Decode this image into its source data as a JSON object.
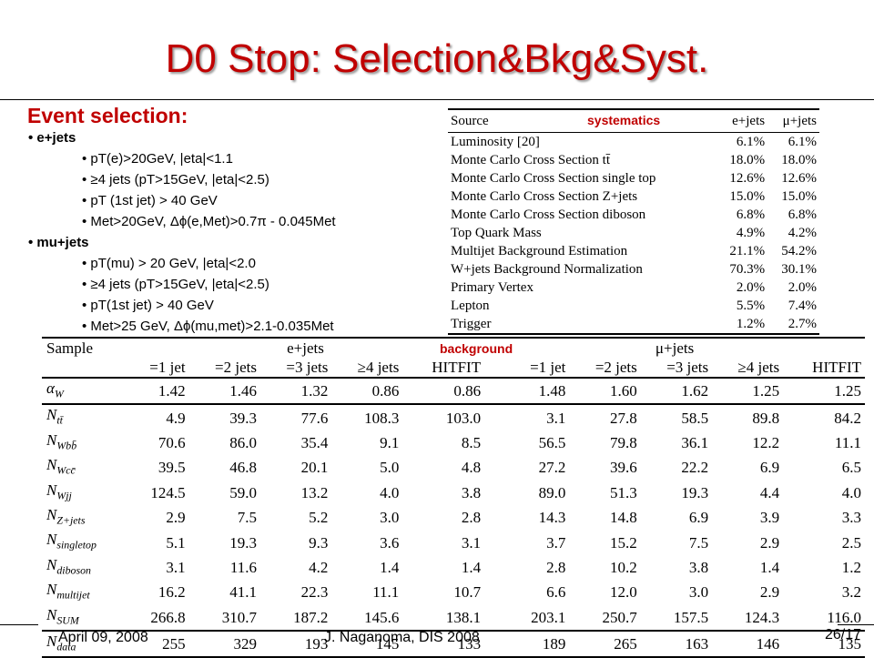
{
  "title": "D0 Stop: Selection&Bkg&Syst.",
  "selection": {
    "heading": "Event selection:",
    "channels": [
      {
        "name": "e+jets",
        "cuts": [
          "pT(e)>20GeV, |eta|<1.1",
          "≥4 jets (pT>15GeV, |eta|<2.5)",
          "pT (1st jet) > 40 GeV",
          "Met>20GeV, Δϕ(e,Met)>0.7π - 0.045Met"
        ]
      },
      {
        "name": "mu+jets",
        "cuts": [
          "pT(mu) > 20 GeV, |eta|<2.0",
          "≥4 jets (pT>15GeV, |eta|<2.5)",
          "pT(1st jet) > 40 GeV",
          "Met>25 GeV, Δϕ(mu,met)>2.1-0.035Met"
        ]
      }
    ]
  },
  "systematics": {
    "tag": "systematics",
    "header": [
      "Source",
      "e+jets",
      "μ+jets"
    ],
    "rows": [
      [
        "Luminosity [20]",
        "6.1%",
        "6.1%"
      ],
      [
        "Monte Carlo Cross Section tt̄",
        "18.0%",
        "18.0%"
      ],
      [
        "Monte Carlo Cross Section single top",
        "12.6%",
        "12.6%"
      ],
      [
        "Monte Carlo Cross Section Z+jets",
        "15.0%",
        "15.0%"
      ],
      [
        "Monte Carlo Cross Section diboson",
        "6.8%",
        "6.8%"
      ],
      [
        "Top Quark Mass",
        "4.9%",
        "4.2%"
      ],
      [
        "Multijet Background Estimation",
        "21.1%",
        "54.2%"
      ],
      [
        "W+jets Background Normalization",
        "70.3%",
        "30.1%"
      ],
      [
        "Primary Vertex",
        "2.0%",
        "2.0%"
      ],
      [
        "Lepton",
        "5.5%",
        "7.4%"
      ],
      [
        "Trigger",
        "1.2%",
        "2.7%"
      ]
    ]
  },
  "background": {
    "tag": "background",
    "sample_label": "Sample",
    "group_labels": [
      "e+jets",
      "μ+jets"
    ],
    "columns": [
      "=1 jet",
      "=2 jets",
      "=3 jets",
      "≥4 jets",
      "HITFIT",
      "=1 jet",
      "=2 jets",
      "=3 jets",
      "≥4 jets",
      "HITFIT"
    ],
    "rows": [
      {
        "base": "α",
        "sub": "W",
        "values": [
          "1.42",
          "1.46",
          "1.32",
          "0.86",
          "0.86",
          "1.48",
          "1.60",
          "1.62",
          "1.25",
          "1.25"
        ]
      },
      {
        "base": "N",
        "sub": "tt̄",
        "values": [
          "4.9",
          "39.3",
          "77.6",
          "108.3",
          "103.0",
          "3.1",
          "27.8",
          "58.5",
          "89.8",
          "84.2"
        ]
      },
      {
        "base": "N",
        "sub": "Wbb̄",
        "values": [
          "70.6",
          "86.0",
          "35.4",
          "9.1",
          "8.5",
          "56.5",
          "79.8",
          "36.1",
          "12.2",
          "11.1"
        ]
      },
      {
        "base": "N",
        "sub": "Wcc̄",
        "values": [
          "39.5",
          "46.8",
          "20.1",
          "5.0",
          "4.8",
          "27.2",
          "39.6",
          "22.2",
          "6.9",
          "6.5"
        ]
      },
      {
        "base": "N",
        "sub": "Wjj",
        "values": [
          "124.5",
          "59.0",
          "13.2",
          "4.0",
          "3.8",
          "89.0",
          "51.3",
          "19.3",
          "4.4",
          "4.0"
        ]
      },
      {
        "base": "N",
        "sub": "Z+jets",
        "values": [
          "2.9",
          "7.5",
          "5.2",
          "3.0",
          "2.8",
          "14.3",
          "14.8",
          "6.9",
          "3.9",
          "3.3"
        ]
      },
      {
        "base": "N",
        "sub": "singletop",
        "values": [
          "5.1",
          "19.3",
          "9.3",
          "3.6",
          "3.1",
          "3.7",
          "15.2",
          "7.5",
          "2.9",
          "2.5"
        ]
      },
      {
        "base": "N",
        "sub": "diboson",
        "values": [
          "3.1",
          "11.6",
          "4.2",
          "1.4",
          "1.4",
          "2.8",
          "10.2",
          "3.8",
          "1.4",
          "1.2"
        ]
      },
      {
        "base": "N",
        "sub": "multijet",
        "values": [
          "16.2",
          "41.1",
          "22.3",
          "11.1",
          "10.7",
          "6.6",
          "12.0",
          "3.0",
          "2.9",
          "3.2"
        ]
      },
      {
        "base": "N",
        "sub": "SUM",
        "values": [
          "266.8",
          "310.7",
          "187.2",
          "145.6",
          "138.1",
          "203.1",
          "250.7",
          "157.5",
          "124.3",
          "116.0"
        ]
      },
      {
        "base": "N",
        "sub": "data",
        "values": [
          "255",
          "329",
          "193",
          "145",
          "133",
          "189",
          "265",
          "163",
          "146",
          "135"
        ]
      }
    ]
  },
  "footer": {
    "date": "April 09, 2008",
    "author": "J. Naganoma, DIS 2008",
    "page": "26/17"
  }
}
